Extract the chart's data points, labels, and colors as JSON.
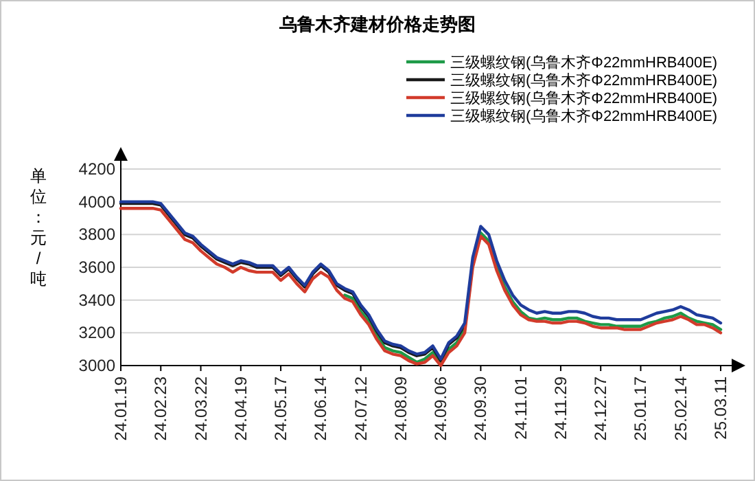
{
  "chart_data": {
    "type": "line",
    "title": "乌鲁木齐建材价格走势图",
    "ylabel": "单位：元/吨",
    "categories": [
      "24.01.19",
      null,
      null,
      null,
      null,
      "24.02.23",
      null,
      null,
      null,
      null,
      "24.03.22",
      null,
      null,
      null,
      null,
      "24.04.19",
      null,
      null,
      null,
      null,
      "24.05.17",
      null,
      null,
      null,
      null,
      "24.06.14",
      null,
      null,
      null,
      null,
      "24.07.12",
      null,
      null,
      null,
      null,
      "24.08.09",
      null,
      null,
      null,
      null,
      "24.09.06",
      null,
      null,
      null,
      null,
      "24.09.30",
      null,
      null,
      null,
      null,
      "24.11.01",
      null,
      null,
      null,
      null,
      "24.11.29",
      null,
      null,
      null,
      null,
      "24.12.27",
      null,
      null,
      null,
      null,
      "25.01.17",
      null,
      null,
      null,
      null,
      "25.02.14",
      null,
      null,
      null,
      null,
      "25.03.11"
    ],
    "series": [
      {
        "name": "三级螺纹钢(乌鲁木齐Φ22mmHRB400E)",
        "color": "#1e9a48",
        "values": [
          null,
          null,
          null,
          null,
          null,
          null,
          null,
          null,
          null,
          null,
          null,
          null,
          null,
          null,
          null,
          null,
          null,
          null,
          null,
          null,
          null,
          null,
          null,
          null,
          null,
          null,
          null,
          null,
          3430,
          3410,
          3330,
          3270,
          3180,
          3110,
          3090,
          3080,
          3050,
          3020,
          3040,
          3080,
          3010,
          3100,
          3140,
          3220,
          3620,
          3810,
          3760,
          3600,
          3480,
          3390,
          3330,
          3290,
          3280,
          3290,
          3280,
          3280,
          3290,
          3290,
          3270,
          3260,
          3250,
          3250,
          3240,
          3240,
          3240,
          3240,
          3260,
          3270,
          3290,
          3300,
          3320,
          3290,
          3270,
          3260,
          3250,
          3220
        ]
      },
      {
        "name": "三级螺纹钢(乌鲁木齐Φ22mmHRB400E)",
        "color": "#1a1a1a",
        "values": [
          3990,
          3990,
          3990,
          3990,
          3990,
          3980,
          3920,
          3860,
          3800,
          3780,
          3730,
          3690,
          3650,
          3630,
          3610,
          3630,
          3620,
          3600,
          3600,
          3600,
          3550,
          3590,
          3530,
          3480,
          3560,
          3610,
          3570,
          3490,
          3460,
          3440,
          3360,
          3300,
          3210,
          3140,
          3120,
          3110,
          3080,
          3060,
          3070,
          3110,
          3030,
          3130,
          3170,
          3250,
          null,
          null,
          null,
          null,
          null,
          null,
          null,
          null,
          null,
          null,
          null,
          null,
          null,
          null,
          null,
          null,
          null,
          null,
          null,
          null,
          null,
          null,
          null,
          null,
          null,
          null,
          null,
          null,
          null,
          null,
          null,
          null
        ]
      },
      {
        "name": "三级螺纹钢(乌鲁木齐Φ22mmHRB400E)",
        "color": "#d23b2b",
        "values": [
          3960,
          3960,
          3960,
          3960,
          3960,
          3950,
          3890,
          3830,
          3770,
          3750,
          3700,
          3660,
          3620,
          3600,
          3570,
          3600,
          3580,
          3570,
          3570,
          3570,
          3520,
          3560,
          3500,
          3450,
          3530,
          3570,
          3540,
          3460,
          3410,
          3390,
          3310,
          3250,
          3160,
          3090,
          3070,
          3060,
          3030,
          3010,
          3020,
          3060,
          3000,
          3080,
          3120,
          3200,
          3600,
          3790,
          3740,
          3580,
          3460,
          3370,
          3310,
          3280,
          3270,
          3270,
          3260,
          3260,
          3270,
          3270,
          3260,
          3240,
          3230,
          3230,
          3230,
          3220,
          3220,
          3220,
          3240,
          3260,
          3270,
          3280,
          3300,
          3280,
          3250,
          3250,
          3230,
          3200
        ]
      },
      {
        "name": "三级螺纹钢(乌鲁木齐Φ22mmHRB400E)",
        "color": "#1f3c9c",
        "values": [
          4000,
          4000,
          4000,
          4000,
          4000,
          3990,
          3930,
          3870,
          3810,
          3790,
          3740,
          3700,
          3660,
          3640,
          3620,
          3640,
          3630,
          3610,
          3610,
          3610,
          3560,
          3600,
          3540,
          3490,
          3570,
          3620,
          3580,
          3500,
          3470,
          3450,
          3370,
          3310,
          3220,
          3150,
          3130,
          3120,
          3090,
          3070,
          3080,
          3120,
          3040,
          3140,
          3180,
          3260,
          3660,
          3850,
          3800,
          3640,
          3520,
          3430,
          3370,
          3340,
          3320,
          3330,
          3320,
          3320,
          3330,
          3330,
          3320,
          3300,
          3290,
          3290,
          3280,
          3280,
          3280,
          3280,
          3300,
          3320,
          3330,
          3340,
          3360,
          3340,
          3310,
          3300,
          3290,
          3260
        ]
      }
    ],
    "ylim": [
      3000,
      4200
    ],
    "yticks": [
      3000,
      3200,
      3400,
      3600,
      3800,
      4000,
      4200
    ],
    "grid": "y",
    "legend": "top right",
    "marker": "none",
    "line_style": "solid"
  }
}
